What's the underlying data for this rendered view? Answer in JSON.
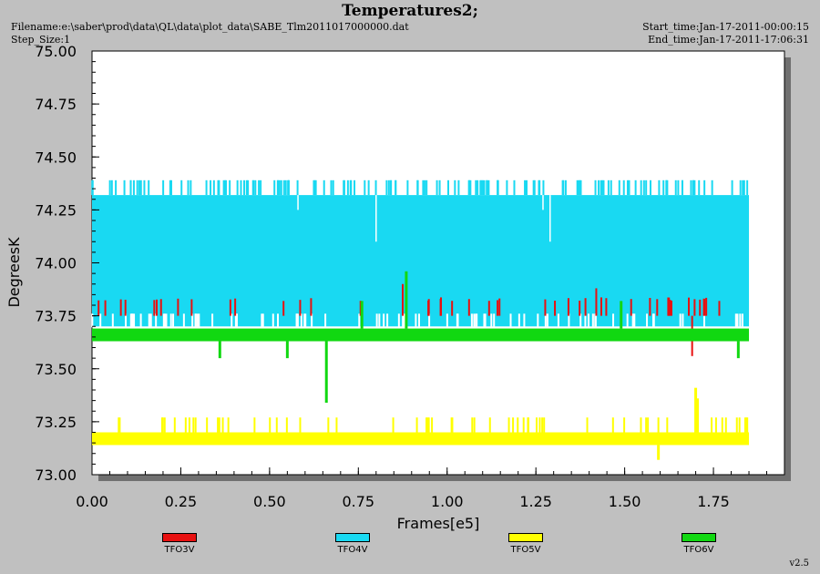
{
  "header": {
    "title": "Temperatures2;",
    "filename": "Filename:e:\\saber\\prod\\data\\QL\\data\\plot_data\\SABE_Tlm2011017000000.dat",
    "step_size": "Step_Size:1",
    "start_time": "Start_time:Jan-17-2011-00:00:15",
    "end_time": "End_time:Jan-17-2011-17:06:31"
  },
  "version": "v2.5",
  "colors": {
    "TFO3V": "#e81010",
    "TFO4V": "#19d9f2",
    "TFO5V": "#ffff00",
    "TFO6V": "#11d811"
  },
  "chart_data": {
    "type": "line",
    "title": "Temperatures2;",
    "xlabel": "Frames[e5]",
    "ylabel": "DegreesK",
    "xlim": [
      0.0,
      1.95
    ],
    "ylim": [
      73.0,
      75.0
    ],
    "x_ticks": [
      "0.00",
      "0.25",
      "0.50",
      "0.75",
      "1.00",
      "1.25",
      "1.50",
      "1.75"
    ],
    "y_ticks": [
      "73.00",
      "73.25",
      "73.50",
      "73.75",
      "74.00",
      "74.25",
      "74.50",
      "74.75",
      "75.00"
    ],
    "grid": false,
    "legend_position": "bottom",
    "series": [
      {
        "name": "TFO4V",
        "x_range": [
          0.0,
          1.85
        ],
        "band": [
          73.7,
          74.32
        ],
        "upper_spikes": [
          74.39
        ],
        "lower_spikes": [
          73.76
        ],
        "point_dips": [
          {
            "x": 0.58,
            "y": 74.25
          },
          {
            "x": 0.8,
            "y": 74.1
          },
          {
            "x": 1.29,
            "y": 74.1
          },
          {
            "x": 1.27,
            "y": 74.25
          }
        ]
      },
      {
        "name": "TFO3V",
        "x_range": [
          0.0,
          1.85
        ],
        "band": [
          73.75,
          73.82
        ],
        "spikes": [
          {
            "x": 0.875,
            "y": 73.9
          },
          {
            "x": 1.42,
            "y": 73.88
          },
          {
            "x": 1.69,
            "y": 73.56
          }
        ]
      },
      {
        "name": "TFO6V",
        "x_range": [
          0.0,
          1.85
        ],
        "band": [
          73.63,
          73.69
        ],
        "spikes": [
          {
            "x": 0.36,
            "y": 73.55
          },
          {
            "x": 0.55,
            "y": 73.55
          },
          {
            "x": 0.66,
            "y": 73.34
          },
          {
            "x": 0.76,
            "y": 73.82
          },
          {
            "x": 0.885,
            "y": 73.96
          },
          {
            "x": 1.49,
            "y": 73.82
          },
          {
            "x": 1.82,
            "y": 73.55
          }
        ]
      },
      {
        "name": "TFO5V",
        "x_range": [
          0.0,
          1.85
        ],
        "band": [
          73.14,
          73.2
        ],
        "spikes": [
          {
            "x": 1.595,
            "y": 73.07
          },
          {
            "x": 1.7,
            "y": 73.41
          },
          {
            "x": 1.705,
            "y": 73.36
          }
        ]
      }
    ]
  }
}
